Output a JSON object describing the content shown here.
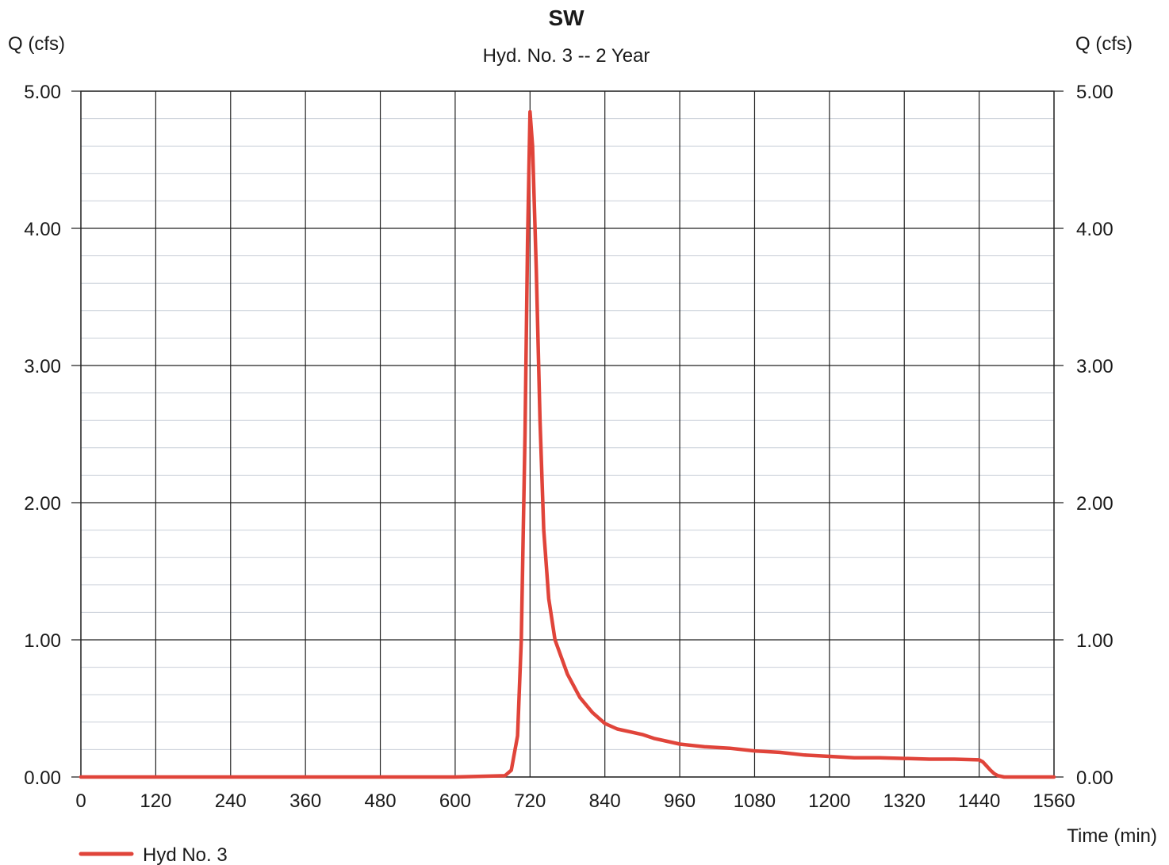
{
  "chart_data": {
    "type": "line",
    "title": "SW",
    "subtitle": "Hyd. No. 3 -- 2 Year",
    "ylabel_left": "Q (cfs)",
    "ylabel_right": "Q (cfs)",
    "xlabel": "Time (min)",
    "xlim": [
      0,
      1560
    ],
    "ylim": [
      0,
      5
    ],
    "x_ticks": [
      0,
      120,
      240,
      360,
      480,
      600,
      720,
      840,
      960,
      1080,
      1200,
      1320,
      1440,
      1560
    ],
    "x_tick_labels": [
      "0",
      "120",
      "240",
      "360",
      "480",
      "600",
      "720",
      "840",
      "960",
      "1080",
      "1200",
      "1320",
      "1440",
      "1560"
    ],
    "y_ticks": [
      0,
      1,
      2,
      3,
      4,
      5
    ],
    "y_tick_labels": [
      "0.00",
      "1.00",
      "2.00",
      "3.00",
      "4.00",
      "5.00"
    ],
    "grid": true,
    "minor_grid": true,
    "legend_position": "bottom-left",
    "series": [
      {
        "name": "Hyd No. 3",
        "color": "#e0443a",
        "x": [
          0,
          600,
          680,
          690,
          700,
          706,
          712,
          716,
          720,
          724,
          730,
          736,
          742,
          750,
          760,
          780,
          800,
          820,
          840,
          860,
          880,
          900,
          920,
          940,
          960,
          980,
          1000,
          1040,
          1080,
          1120,
          1160,
          1200,
          1240,
          1280,
          1320,
          1360,
          1400,
          1440,
          1446,
          1452,
          1458,
          1464,
          1470,
          1480,
          1500,
          1560
        ],
        "y": [
          0,
          0,
          0.01,
          0.05,
          0.3,
          1.0,
          2.5,
          3.9,
          4.85,
          4.6,
          3.7,
          2.6,
          1.8,
          1.3,
          1.0,
          0.75,
          0.58,
          0.47,
          0.39,
          0.35,
          0.33,
          0.31,
          0.28,
          0.26,
          0.24,
          0.23,
          0.22,
          0.21,
          0.19,
          0.18,
          0.16,
          0.15,
          0.14,
          0.14,
          0.135,
          0.13,
          0.13,
          0.125,
          0.11,
          0.08,
          0.05,
          0.025,
          0.01,
          0,
          0,
          0
        ]
      }
    ]
  }
}
